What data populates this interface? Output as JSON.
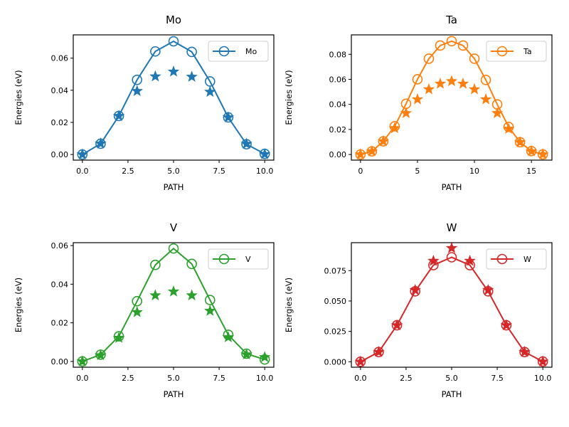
{
  "chart_data": [
    {
      "type": "line",
      "title": "Mo",
      "xlabel": "PATH",
      "ylabel": "Energies (eV)",
      "xlim": [
        -0.5,
        10.5
      ],
      "ylim": [
        -0.0035,
        0.0745
      ],
      "xticks": [
        0,
        2.5,
        5,
        7.5,
        10
      ],
      "xtick_labels": [
        "0.0",
        "2.5",
        "5.0",
        "7.5",
        "10.0"
      ],
      "yticks": [
        0,
        0.02,
        0.04,
        0.06
      ],
      "ytick_labels": [
        "0.00",
        "0.02",
        "0.04",
        "0.06"
      ],
      "legend_position": "upper-right",
      "color": "#1f77b4",
      "series": [
        {
          "name": "Mo",
          "style": "line-open-circle",
          "x": [
            0,
            1,
            2,
            3,
            4,
            5,
            6,
            7,
            8,
            9,
            10
          ],
          "values": [
            0.0,
            0.0067,
            0.024,
            0.0465,
            0.0642,
            0.0705,
            0.0639,
            0.0455,
            0.0231,
            0.0064,
            0.0004
          ]
        },
        {
          "style": "star",
          "x": [
            0,
            1,
            2,
            3,
            4,
            5,
            6,
            7,
            8,
            9,
            10
          ],
          "values": [
            0.0,
            0.0068,
            0.024,
            0.0395,
            0.0486,
            0.0516,
            0.0484,
            0.039,
            0.0231,
            0.0066,
            0.0002
          ]
        }
      ]
    },
    {
      "type": "line",
      "title": "Ta",
      "xlabel": "PATH",
      "ylabel": "Energies (eV)",
      "xlim": [
        -0.8,
        16.8
      ],
      "ylim": [
        -0.0045,
        0.0955
      ],
      "xticks": [
        0,
        5,
        10,
        15
      ],
      "xtick_labels": [
        "0",
        "5",
        "10",
        "15"
      ],
      "yticks": [
        0,
        0.02,
        0.04,
        0.06,
        0.08
      ],
      "ytick_labels": [
        "0.00",
        "0.02",
        "0.04",
        "0.06",
        "0.08"
      ],
      "legend_position": "upper-right",
      "color": "#ff7f0e",
      "series": [
        {
          "name": "Ta",
          "style": "line-open-circle",
          "x": [
            0,
            1,
            2,
            3,
            4,
            5,
            6,
            7,
            8,
            9,
            10,
            11,
            12,
            13,
            14,
            15,
            16
          ],
          "values": [
            0.0,
            0.0025,
            0.0105,
            0.0225,
            0.0405,
            0.06,
            0.0765,
            0.087,
            0.0905,
            0.087,
            0.0765,
            0.0595,
            0.04,
            0.022,
            0.0098,
            0.0027,
            0.0001
          ]
        },
        {
          "style": "star",
          "x": [
            0,
            1,
            2,
            3,
            4,
            5,
            6,
            7,
            8,
            9,
            10,
            11,
            12,
            13,
            14,
            15,
            16
          ],
          "values": [
            0.0,
            0.0025,
            0.0105,
            0.021,
            0.033,
            0.044,
            0.052,
            0.0565,
            0.0585,
            0.0565,
            0.052,
            0.044,
            0.033,
            0.0205,
            0.0098,
            0.0025,
            0.0001
          ]
        }
      ]
    },
    {
      "type": "line",
      "title": "V",
      "xlabel": "PATH",
      "ylabel": "Energies (eV)",
      "xlim": [
        -0.5,
        10.5
      ],
      "ylim": [
        -0.003,
        0.0615
      ],
      "xticks": [
        0,
        2.5,
        5,
        7.5,
        10
      ],
      "xtick_labels": [
        "0.0",
        "2.5",
        "5.0",
        "7.5",
        "10.0"
      ],
      "yticks": [
        0,
        0.02,
        0.04,
        0.06
      ],
      "ytick_labels": [
        "0.00",
        "0.02",
        "0.04",
        "0.06"
      ],
      "legend_position": "upper-right",
      "color": "#2ca02c",
      "series": [
        {
          "name": "V",
          "style": "line-open-circle",
          "x": [
            0,
            1,
            2,
            3,
            4,
            5,
            6,
            7,
            8,
            9,
            10
          ],
          "values": [
            0.0,
            0.0035,
            0.013,
            0.0312,
            0.05,
            0.0585,
            0.0505,
            0.0318,
            0.0138,
            0.004,
            0.001
          ]
        },
        {
          "style": "star",
          "x": [
            0,
            1,
            2,
            3,
            4,
            5,
            6,
            7,
            8,
            9,
            10
          ],
          "values": [
            0.0,
            0.0032,
            0.0122,
            0.0255,
            0.0342,
            0.0362,
            0.0342,
            0.0262,
            0.0125,
            0.0036,
            0.0022
          ]
        }
      ]
    },
    {
      "type": "line",
      "title": "W",
      "xlabel": "PATH",
      "ylabel": "Energies (eV)",
      "xlim": [
        -0.5,
        10.5
      ],
      "ylim": [
        -0.0045,
        0.098
      ],
      "xticks": [
        0,
        2.5,
        5,
        7.5,
        10
      ],
      "xtick_labels": [
        "0.0",
        "2.5",
        "5.0",
        "7.5",
        "10.0"
      ],
      "yticks": [
        0,
        0.025,
        0.05,
        0.075
      ],
      "ytick_labels": [
        "0.000",
        "0.025",
        "0.050",
        "0.075"
      ],
      "legend_position": "upper-right",
      "color": "#d62728",
      "series": [
        {
          "name": "W",
          "style": "line-open-circle",
          "x": [
            0,
            1,
            2,
            3,
            4,
            5,
            6,
            7,
            8,
            9,
            10
          ],
          "values": [
            0.0,
            0.008,
            0.03,
            0.058,
            0.0795,
            0.086,
            0.0795,
            0.058,
            0.03,
            0.008,
            0.0002
          ]
        },
        {
          "style": "star",
          "x": [
            0,
            1,
            2,
            3,
            4,
            5,
            6,
            7,
            8,
            9,
            10
          ],
          "values": [
            0.0,
            0.008,
            0.03,
            0.059,
            0.083,
            0.0935,
            0.083,
            0.059,
            0.03,
            0.008,
            0.0001
          ]
        }
      ]
    }
  ]
}
